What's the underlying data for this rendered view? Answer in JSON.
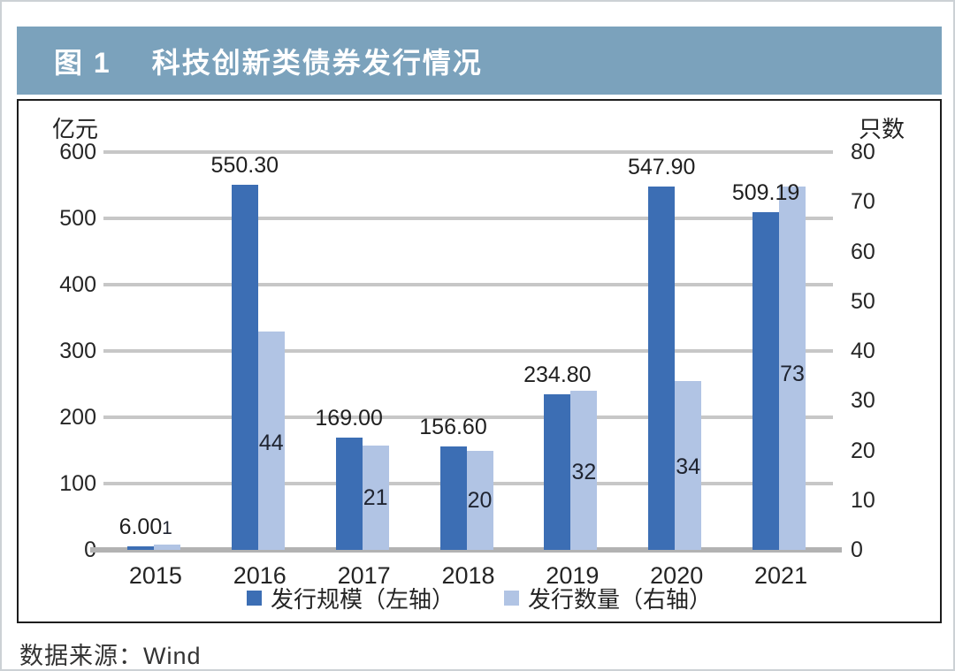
{
  "figure": {
    "title_prefix": "图 1",
    "title": "科技创新类债券发行情况",
    "source": "数据来源：Wind"
  },
  "colors": {
    "title_bar_bg": "#7ba2bc",
    "bar_dark": "#3c6eb4",
    "bar_light": "#b1c4e4",
    "gridline": "#c7c7c7",
    "baseline": "#b2b2b2"
  },
  "chart_data": {
    "type": "bar",
    "categories": [
      "2015",
      "2016",
      "2017",
      "2018",
      "2019",
      "2020",
      "2021"
    ],
    "series": [
      {
        "name": "发行规模（左轴）",
        "axis": "left",
        "color": "#3c6eb4",
        "values": [
          6.0,
          550.3,
          169.0,
          156.6,
          234.8,
          547.9,
          509.19
        ],
        "labels": [
          "6.00",
          "550.30",
          "169.00",
          "156.60",
          "234.80",
          "547.90",
          "509.19"
        ]
      },
      {
        "name": "发行数量（右轴）",
        "axis": "right",
        "color": "#b1c4e4",
        "values": [
          1,
          44,
          21,
          20,
          32,
          34,
          73
        ],
        "labels": [
          "1",
          "44",
          "21",
          "20",
          "32",
          "34",
          "73"
        ]
      }
    ],
    "left_axis": {
      "label": "亿元",
      "min": 0,
      "max": 600,
      "step": 100,
      "ticks": [
        "600",
        "500",
        "400",
        "300",
        "200",
        "100",
        "0"
      ]
    },
    "right_axis": {
      "label": "只数",
      "min": 0,
      "max": 80,
      "step": 10,
      "ticks": [
        "80",
        "70",
        "60",
        "50",
        "40",
        "30",
        "20",
        "10",
        "0"
      ]
    },
    "grid": true,
    "legend_position": "bottom"
  }
}
